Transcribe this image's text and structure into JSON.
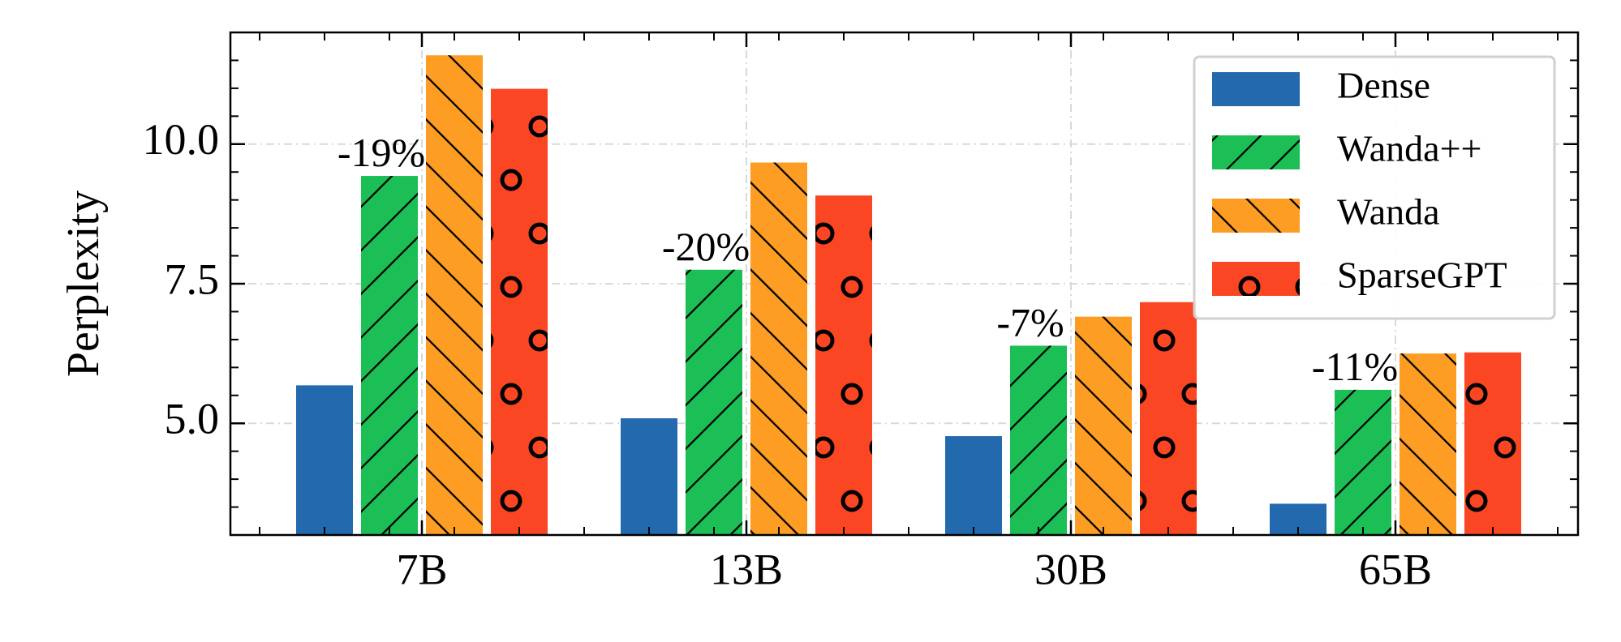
{
  "chart_data": {
    "type": "bar",
    "ylabel": "Perplexity",
    "xlabel": "",
    "categories": [
      "7B",
      "13B",
      "30B",
      "65B"
    ],
    "ylim": [
      3.0,
      12.0
    ],
    "yticks": [
      5.0,
      7.5,
      10.0
    ],
    "ytick_labels": [
      "5.0",
      "7.5",
      "10.0"
    ],
    "grid": true,
    "legend_position": "top-right",
    "series": [
      {
        "name": "Dense",
        "color": "#2369ae",
        "pattern": "none",
        "values": [
          5.68,
          5.09,
          4.77,
          3.56
        ]
      },
      {
        "name": "Wanda++",
        "color": "#1cbf55",
        "pattern": "forward-diagonal",
        "values": [
          9.43,
          7.75,
          6.39,
          5.6
        ]
      },
      {
        "name": "Wanda",
        "color": "#fd9d23",
        "pattern": "back-diagonal",
        "values": [
          11.59,
          9.67,
          6.91,
          6.25
        ]
      },
      {
        "name": "SparseGPT",
        "color": "#fa4623",
        "pattern": "circles",
        "values": [
          10.99,
          9.08,
          7.17,
          6.27
        ]
      }
    ],
    "annotations": [
      "-19%",
      "-20%",
      "-7%",
      "-11%"
    ]
  }
}
